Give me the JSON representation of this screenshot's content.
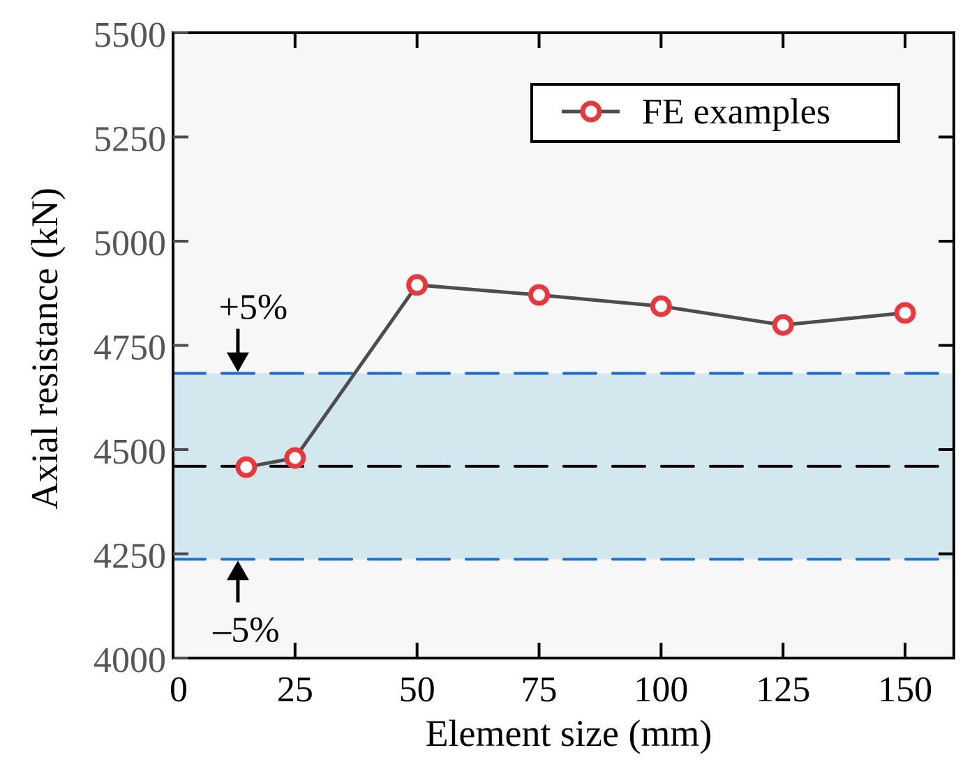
{
  "chart_data": {
    "type": "line",
    "title": "",
    "xlabel": "Element size (mm)",
    "ylabel": "Axial resistance (kN)",
    "xlim": [
      0,
      160
    ],
    "ylim": [
      4000,
      5500
    ],
    "xticks": [
      0,
      25,
      50,
      75,
      100,
      125,
      150
    ],
    "yticks": [
      4000,
      4250,
      4500,
      4750,
      5000,
      5250,
      5500
    ],
    "grid": false,
    "legend": {
      "position": "top-right",
      "entries": [
        "FE examples"
      ]
    },
    "series": [
      {
        "name": "FE examples",
        "x": [
          15,
          25,
          50,
          75,
          100,
          125,
          150
        ],
        "y": [
          4458,
          4480,
          4895,
          4871,
          4844,
          4799,
          4828
        ],
        "color": "#e8383d",
        "line_color": "#4d4d4d"
      }
    ],
    "reference_lines": {
      "mean": 4460,
      "upper": 4683,
      "lower": 4237,
      "mean_color": "#000000",
      "bound_color": "#1f6fd8",
      "band_color": "#d2e7ee"
    },
    "annotations": {
      "upper_label": "+5%",
      "lower_label": "–5%",
      "annotation_x": 14
    },
    "background_color": "#f7f7f7"
  }
}
